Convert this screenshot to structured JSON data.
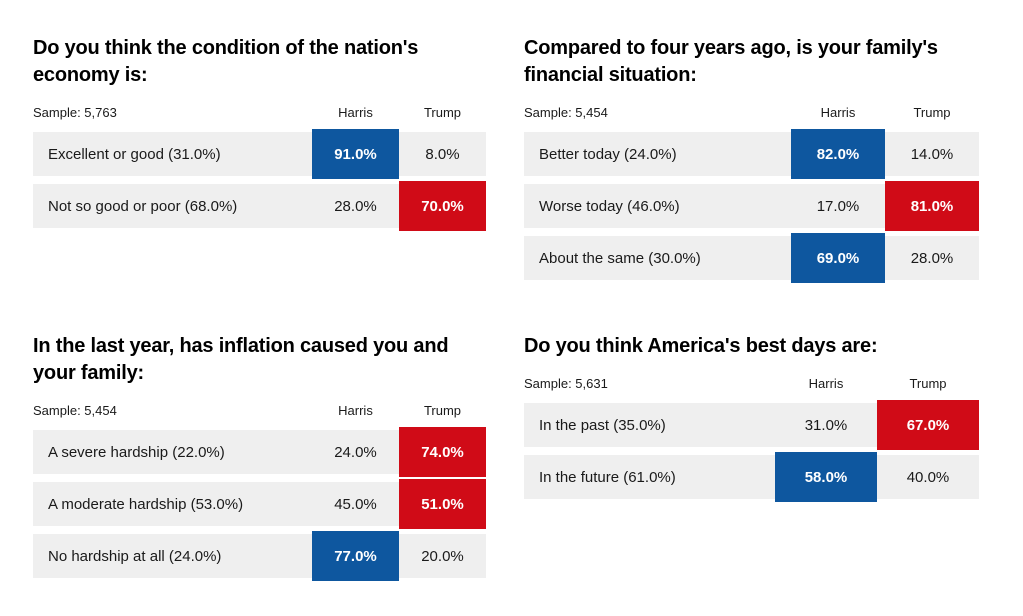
{
  "colors": {
    "harris_highlight": "#0e579f",
    "trump_highlight": "#d00b17",
    "row_background": "#efefef"
  },
  "chart_data": [
    {
      "type": "table",
      "title": "Do you think the condition of the nation's economy is:",
      "sample_label": "Sample: 5,763",
      "columns": [
        "Harris",
        "Trump"
      ],
      "rows": [
        {
          "label": "Excellent or good (31.0%)",
          "harris": "91.0%",
          "trump": "8.0%",
          "winner": "harris"
        },
        {
          "label": "Not so good or poor (68.0%)",
          "harris": "28.0%",
          "trump": "70.0%",
          "winner": "trump"
        }
      ]
    },
    {
      "type": "table",
      "title": "Compared to four years ago, is your family's financial situation:",
      "sample_label": "Sample: 5,454",
      "columns": [
        "Harris",
        "Trump"
      ],
      "rows": [
        {
          "label": "Better today (24.0%)",
          "harris": "82.0%",
          "trump": "14.0%",
          "winner": "harris"
        },
        {
          "label": "Worse today (46.0%)",
          "harris": "17.0%",
          "trump": "81.0%",
          "winner": "trump"
        },
        {
          "label": "About the same (30.0%)",
          "harris": "69.0%",
          "trump": "28.0%",
          "winner": "harris"
        }
      ]
    },
    {
      "type": "table",
      "title": "In the last year, has inflation caused you and your family:",
      "sample_label": "Sample: 5,454",
      "columns": [
        "Harris",
        "Trump"
      ],
      "rows": [
        {
          "label": "A severe hardship (22.0%)",
          "harris": "24.0%",
          "trump": "74.0%",
          "winner": "trump"
        },
        {
          "label": "A moderate hardship (53.0%)",
          "harris": "45.0%",
          "trump": "51.0%",
          "winner": "trump"
        },
        {
          "label": "No hardship at all (24.0%)",
          "harris": "77.0%",
          "trump": "20.0%",
          "winner": "harris"
        }
      ]
    },
    {
      "type": "table",
      "title": "Do you think America's best days are:",
      "sample_label": "Sample: 5,631",
      "columns": [
        "Harris",
        "Trump"
      ],
      "rows": [
        {
          "label": "In the past (35.0%)",
          "harris": "31.0%",
          "trump": "67.0%",
          "winner": "trump"
        },
        {
          "label": "In the future (61.0%)",
          "harris": "58.0%",
          "trump": "40.0%",
          "winner": "harris"
        }
      ]
    }
  ]
}
